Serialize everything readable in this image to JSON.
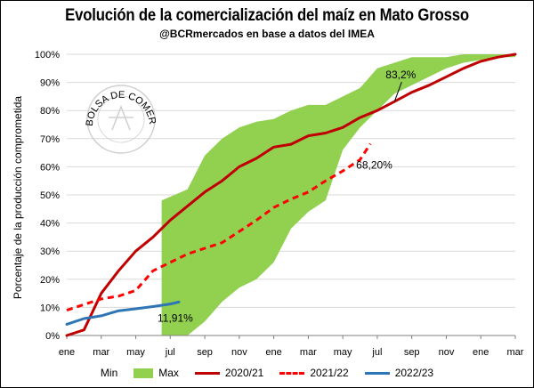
{
  "chart_data": {
    "type": "line",
    "title": "Evolución de la comercialización del maíz en Mato Grosso",
    "subtitle": "@BCRmercados en base a datos del IMEA",
    "xlabel": "",
    "ylabel": "Porcentaje de la producción comprometida",
    "ylim": [
      0,
      100
    ],
    "yticks": [
      "0%",
      "10%",
      "20%",
      "30%",
      "40%",
      "50%",
      "60%",
      "70%",
      "80%",
      "90%",
      "100%"
    ],
    "x_ticks": [
      "ene",
      "mar",
      "may",
      "jul",
      "sep",
      "nov",
      "ene",
      "mar",
      "may",
      "jul",
      "sep",
      "nov",
      "ene",
      "mar"
    ],
    "x_range": [
      0,
      26
    ],
    "gridlines": "horizontal",
    "colors": {
      "band": "#92d050",
      "2020/21": "#c00000",
      "2021/22": "#ff0000",
      "2022/23": "#2e75b6"
    },
    "band": {
      "name_min": "Min",
      "name_max": "Max",
      "x": [
        5.5,
        7,
        8,
        9,
        10,
        11,
        12,
        13,
        14,
        15,
        16,
        17,
        18,
        19,
        20,
        21,
        22,
        23,
        24,
        25,
        26
      ],
      "min": [
        0,
        0,
        5,
        12,
        17,
        20,
        26,
        38,
        44,
        48,
        66,
        74,
        80,
        86,
        89,
        92,
        95,
        97,
        98,
        99,
        99
      ],
      "max": [
        48,
        52,
        64,
        70,
        74,
        76,
        77,
        80,
        82,
        82,
        85,
        88,
        95,
        97,
        99,
        99,
        99,
        100,
        100,
        100,
        100
      ]
    },
    "series": [
      {
        "name": "2020/21",
        "style": "solid",
        "x": [
          0,
          1,
          2,
          3,
          4,
          5,
          6,
          7,
          8,
          9,
          10,
          11,
          12,
          13,
          14,
          15,
          16,
          17,
          18,
          19,
          20,
          21,
          22,
          23,
          24,
          25,
          26
        ],
        "values": [
          0,
          2,
          15,
          23,
          30,
          35,
          41,
          46,
          51,
          55,
          60,
          63,
          67,
          68,
          71,
          72,
          74,
          77.5,
          80,
          83.2,
          86.5,
          89,
          92,
          95,
          97.5,
          99,
          100
        ]
      },
      {
        "name": "2021/22",
        "style": "dashed",
        "x": [
          0,
          1,
          2,
          3,
          4,
          5,
          6,
          7,
          8,
          9,
          10,
          11,
          12,
          13,
          14,
          15,
          16,
          17,
          17.6
        ],
        "values": [
          9,
          11,
          13,
          14,
          16,
          23,
          26,
          29,
          31,
          33,
          37,
          41,
          45.5,
          48.5,
          51,
          55,
          58.5,
          62.5,
          68.2
        ]
      },
      {
        "name": "2022/23",
        "style": "solid",
        "x": [
          0,
          1,
          2,
          3,
          4,
          5,
          6,
          6.5
        ],
        "values": [
          4,
          6,
          7,
          8.8,
          9.5,
          10.3,
          11.2,
          11.91
        ]
      }
    ],
    "annotations": [
      {
        "text": "83,2%",
        "series": "2020/21",
        "x": 19,
        "y": 83.2
      },
      {
        "text": "68,20%",
        "series": "2021/22",
        "x": 17.6,
        "y": 68.2
      },
      {
        "text": "11,91%",
        "series": "2022/23",
        "x": 6.5,
        "y": 11.91
      }
    ]
  },
  "watermark": {
    "text": "BOLSA DE COMERCIO DE ROSARIO"
  }
}
